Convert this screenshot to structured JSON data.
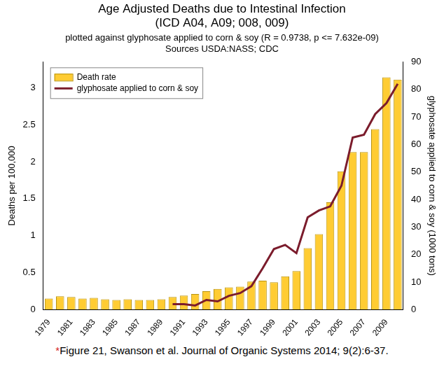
{
  "chart_data": {
    "type": "bar",
    "title": [
      "Age Adjusted Deaths due to Intestinal Infection",
      "(ICD A04, A09; 008, 009)"
    ],
    "subtitle": [
      "plotted against glyphosate applied to corn & soy (R = 0.9738, p <= 7.632e-09)",
      "Sources USDA:NASS; CDC"
    ],
    "caption": "*Figure 21, Swanson et al. Journal of Organic Systems 2014; 9(2):6-37.",
    "y_label": "Deaths per 100,000",
    "y2_label": "glyphosate applied to corn & soy (1000 tons)",
    "categories": [
      "1979",
      null,
      "1981",
      null,
      "1983",
      null,
      "1985",
      null,
      "1987",
      null,
      "1989",
      null,
      "1991",
      null,
      "1993",
      null,
      "1995",
      null,
      "1997",
      null,
      "1999",
      null,
      "2001",
      null,
      "2003",
      null,
      "2005",
      null,
      "2007",
      null,
      "2009",
      null
    ],
    "series": [
      {
        "name": "Death rate",
        "type": "bar",
        "color": "#ffcc33",
        "values": [
          0.15,
          0.18,
          0.17,
          0.15,
          0.16,
          0.14,
          0.13,
          0.14,
          0.13,
          0.13,
          0.14,
          0.17,
          0.19,
          0.21,
          0.25,
          0.28,
          0.3,
          0.31,
          0.38,
          0.39,
          0.37,
          0.45,
          0.52,
          0.83,
          1.02,
          1.45,
          1.87,
          2.13,
          2.13,
          2.44,
          3.14,
          3.11
        ]
      },
      {
        "name": "glyphosate applied to corn & soy",
        "type": "line",
        "axis": "y2",
        "color": "#7b1c2c",
        "values": [
          null,
          null,
          null,
          null,
          null,
          null,
          null,
          null,
          null,
          null,
          null,
          2,
          2,
          1.5,
          3.5,
          3,
          5,
          6,
          8.5,
          15,
          22,
          23.5,
          20.5,
          33.5,
          36,
          37.5,
          45,
          62.5,
          63.5,
          71,
          75,
          82
        ]
      }
    ],
    "ylim": [
      0,
      3.35
    ],
    "yticks": [
      0,
      0.5,
      1,
      1.5,
      2,
      2.5,
      3
    ],
    "y2lim": [
      0,
      90
    ],
    "y2ticks": [
      0,
      10,
      20,
      30,
      40,
      50,
      60,
      70,
      80,
      90
    ],
    "grid": false,
    "legend": "upper left"
  }
}
